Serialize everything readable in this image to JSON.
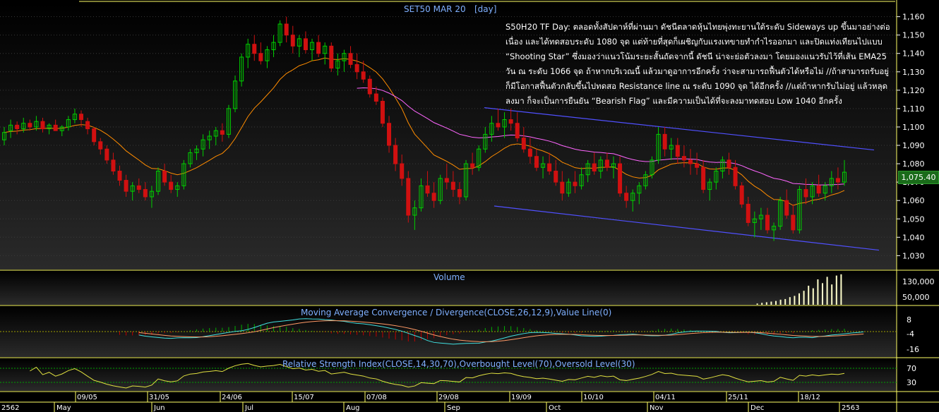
{
  "chart_data": {
    "type": "candlestick",
    "title": "SET50 MAR 20",
    "period": "[day]",
    "y_ticks": [
      1030,
      1040,
      1050,
      1060,
      1070,
      1080,
      1090,
      1100,
      1110,
      1120,
      1130,
      1140,
      1150,
      1160
    ],
    "ylim": [
      1024,
      1166
    ],
    "last_price": "1,075.40",
    "x_labels": [
      "09/05",
      "31/05",
      "24/06",
      "15/07",
      "07/08",
      "29/08",
      "19/09",
      "10/10",
      "04/11",
      "25/11",
      "18/12"
    ],
    "month_labels": [
      "2562",
      "May",
      "Jun",
      "Jul",
      "Aug",
      "Sep",
      "Oct",
      "Nov",
      "Dec",
      "2563"
    ],
    "candles": [
      [
        1093,
        1100,
        1090,
        1097
      ],
      [
        1098,
        1104,
        1094,
        1101
      ],
      [
        1101,
        1103,
        1096,
        1099
      ],
      [
        1099,
        1105,
        1097,
        1102
      ],
      [
        1102,
        1104,
        1098,
        1100
      ],
      [
        1100,
        1106,
        1098,
        1103
      ],
      [
        1103,
        1105,
        1097,
        1099
      ],
      [
        1099,
        1102,
        1096,
        1101
      ],
      [
        1101,
        1104,
        1099,
        1098
      ],
      [
        1098,
        1101,
        1095,
        1100
      ],
      [
        1100,
        1106,
        1098,
        1104
      ],
      [
        1104,
        1110,
        1102,
        1107
      ],
      [
        1107,
        1109,
        1100,
        1104
      ],
      [
        1103,
        1105,
        1096,
        1099
      ],
      [
        1099,
        1100,
        1090,
        1092
      ],
      [
        1092,
        1094,
        1085,
        1088
      ],
      [
        1088,
        1090,
        1080,
        1082
      ],
      [
        1082,
        1086,
        1074,
        1076
      ],
      [
        1076,
        1079,
        1068,
        1071
      ],
      [
        1071,
        1074,
        1062,
        1065
      ],
      [
        1065,
        1070,
        1060,
        1068
      ],
      [
        1068,
        1072,
        1064,
        1066
      ],
      [
        1066,
        1070,
        1060,
        1062
      ],
      [
        1062,
        1068,
        1056,
        1065
      ],
      [
        1065,
        1078,
        1063,
        1076
      ],
      [
        1076,
        1080,
        1068,
        1070
      ],
      [
        1070,
        1074,
        1064,
        1066
      ],
      [
        1066,
        1070,
        1062,
        1068
      ],
      [
        1068,
        1082,
        1066,
        1080
      ],
      [
        1080,
        1088,
        1078,
        1086
      ],
      [
        1086,
        1090,
        1082,
        1088
      ],
      [
        1088,
        1096,
        1084,
        1093
      ],
      [
        1093,
        1098,
        1088,
        1095
      ],
      [
        1095,
        1100,
        1090,
        1098
      ],
      [
        1098,
        1102,
        1092,
        1096
      ],
      [
        1096,
        1112,
        1094,
        1110
      ],
      [
        1110,
        1128,
        1108,
        1125
      ],
      [
        1125,
        1140,
        1122,
        1138
      ],
      [
        1138,
        1148,
        1132,
        1145
      ],
      [
        1145,
        1150,
        1136,
        1140
      ],
      [
        1140,
        1146,
        1134,
        1136
      ],
      [
        1136,
        1144,
        1132,
        1142
      ],
      [
        1142,
        1150,
        1138,
        1146
      ],
      [
        1146,
        1158,
        1144,
        1156
      ],
      [
        1156,
        1160,
        1146,
        1150
      ],
      [
        1150,
        1155,
        1140,
        1144
      ],
      [
        1144,
        1150,
        1138,
        1148
      ],
      [
        1148,
        1152,
        1140,
        1142
      ],
      [
        1142,
        1148,
        1136,
        1146
      ],
      [
        1146,
        1150,
        1138,
        1140
      ],
      [
        1140,
        1146,
        1134,
        1144
      ],
      [
        1144,
        1146,
        1130,
        1132
      ],
      [
        1132,
        1140,
        1128,
        1136
      ],
      [
        1136,
        1142,
        1130,
        1140
      ],
      [
        1140,
        1144,
        1132,
        1134
      ],
      [
        1134,
        1140,
        1126,
        1130
      ],
      [
        1130,
        1136,
        1124,
        1126
      ],
      [
        1126,
        1128,
        1116,
        1118
      ],
      [
        1118,
        1122,
        1112,
        1114
      ],
      [
        1114,
        1116,
        1100,
        1102
      ],
      [
        1102,
        1106,
        1086,
        1090
      ],
      [
        1090,
        1094,
        1076,
        1080
      ],
      [
        1080,
        1085,
        1068,
        1072
      ],
      [
        1072,
        1076,
        1048,
        1052
      ],
      [
        1052,
        1060,
        1044,
        1056
      ],
      [
        1056,
        1072,
        1054,
        1068
      ],
      [
        1068,
        1076,
        1062,
        1064
      ],
      [
        1064,
        1070,
        1056,
        1060
      ],
      [
        1060,
        1074,
        1058,
        1072
      ],
      [
        1072,
        1080,
        1066,
        1070
      ],
      [
        1070,
        1076,
        1062,
        1066
      ],
      [
        1066,
        1070,
        1058,
        1062
      ],
      [
        1062,
        1082,
        1060,
        1080
      ],
      [
        1080,
        1086,
        1074,
        1078
      ],
      [
        1078,
        1090,
        1076,
        1088
      ],
      [
        1088,
        1100,
        1086,
        1096
      ],
      [
        1096,
        1106,
        1092,
        1102
      ],
      [
        1102,
        1110,
        1098,
        1100
      ],
      [
        1100,
        1108,
        1094,
        1104
      ],
      [
        1104,
        1110,
        1098,
        1102
      ],
      [
        1102,
        1108,
        1092,
        1094
      ],
      [
        1094,
        1100,
        1086,
        1088
      ],
      [
        1088,
        1094,
        1080,
        1084
      ],
      [
        1084,
        1088,
        1076,
        1078
      ],
      [
        1078,
        1084,
        1072,
        1080
      ],
      [
        1080,
        1086,
        1074,
        1076
      ],
      [
        1076,
        1082,
        1068,
        1070
      ],
      [
        1070,
        1076,
        1060,
        1064
      ],
      [
        1064,
        1072,
        1062,
        1070
      ],
      [
        1070,
        1076,
        1064,
        1068
      ],
      [
        1068,
        1078,
        1066,
        1074
      ],
      [
        1074,
        1082,
        1070,
        1080
      ],
      [
        1080,
        1086,
        1074,
        1076
      ],
      [
        1076,
        1084,
        1072,
        1082
      ],
      [
        1082,
        1086,
        1076,
        1078
      ],
      [
        1078,
        1084,
        1072,
        1080
      ],
      [
        1080,
        1084,
        1062,
        1064
      ],
      [
        1064,
        1068,
        1056,
        1060
      ],
      [
        1060,
        1066,
        1054,
        1064
      ],
      [
        1064,
        1070,
        1058,
        1068
      ],
      [
        1068,
        1076,
        1066,
        1074
      ],
      [
        1074,
        1084,
        1072,
        1082
      ],
      [
        1082,
        1100,
        1080,
        1096
      ],
      [
        1096,
        1100,
        1084,
        1088
      ],
      [
        1088,
        1094,
        1082,
        1090
      ],
      [
        1090,
        1094,
        1080,
        1084
      ],
      [
        1084,
        1090,
        1078,
        1082
      ],
      [
        1082,
        1088,
        1074,
        1080
      ],
      [
        1080,
        1086,
        1074,
        1078
      ],
      [
        1078,
        1082,
        1064,
        1066
      ],
      [
        1066,
        1072,
        1060,
        1070
      ],
      [
        1070,
        1078,
        1066,
        1076
      ],
      [
        1076,
        1084,
        1072,
        1082
      ],
      [
        1082,
        1086,
        1074,
        1078
      ],
      [
        1078,
        1082,
        1066,
        1068
      ],
      [
        1068,
        1070,
        1056,
        1058
      ],
      [
        1058,
        1062,
        1046,
        1048
      ],
      [
        1048,
        1054,
        1040,
        1050
      ],
      [
        1050,
        1056,
        1044,
        1052
      ],
      [
        1052,
        1056,
        1042,
        1044
      ],
      [
        1044,
        1048,
        1038,
        1046
      ],
      [
        1046,
        1062,
        1044,
        1060
      ],
      [
        1060,
        1066,
        1050,
        1052
      ],
      [
        1052,
        1058,
        1042,
        1044
      ],
      [
        1044,
        1068,
        1042,
        1066
      ],
      [
        1066,
        1072,
        1058,
        1062
      ],
      [
        1062,
        1070,
        1058,
        1068
      ],
      [
        1068,
        1074,
        1062,
        1064
      ],
      [
        1064,
        1070,
        1060,
        1068
      ],
      [
        1068,
        1076,
        1064,
        1072
      ],
      [
        1072,
        1078,
        1066,
        1070
      ],
      [
        1070,
        1082,
        1068,
        1075.4
      ]
    ],
    "volume_ticks": [
      "130,000",
      "50,000"
    ],
    "macd": {
      "title": "Moving Average Convergence / Divergence(CLOSE,26,12,9),Value Line(0)",
      "ticks": [
        "8",
        "-4",
        "-16"
      ]
    },
    "rsi": {
      "title": "Relative Strength Index(CLOSE,14,30,70),Overbought Level(70),Oversold Level(30)",
      "ticks": [
        "70",
        "30"
      ]
    },
    "panels": {
      "volume_title": "Volume"
    }
  },
  "note_lines": [
    "S50H20 TF Day: ตลอดทั้งสัปดาห์ที่ผ่านมา ดัชนีตลาดหุ้นไทยพุ่งทะยานใต้ระดับ Sideways up ขึ้นมาอย่างต่อ",
    "เนื่อง และได้ทดสอบระดับ 1080 จุด แต่ท้ายที่สุดก็เผชิญกับแรงเทขายทำกำไรออกมา และปิดแท่งเทียนไปแบบ",
    "“Shooting Star” ซึ่งมองว่าแนวโน้มระยะสั้นถัดจากนี้ ดัชนี น่าจะย่อตัวลงมา โดยมองแนวรับไว้ที่เส้น EMA25",
    "วัน ณ ระดับ 1066 จุด ถ้าหากบริเวณนี้ แล้วมาดูอาการอีกครั้ง ว่าจะสามารถฟื้นตัวได้หรือไม่ //ถ้าสามารถรับอยู่",
    "ก็มีโอกาสฟื้นตัวกลับขึ้นไปทดสอ Resistance line ณ ระดับ 1090 จุด ได้อีกครั้ง //แต่ถ้าหากรับไม่อยู่ แล้วหลุด",
    "ลงมา ก็จะเป็นการยืนยัน “Bearish Flag” และมีความเป็นได้ที่จะลงมาทดสอบ Low 1040 อีกครั้ง"
  ],
  "colors": {
    "up": "#00d000",
    "down": "#d01010",
    "ema_short": "#ff8c00",
    "ema_long": "#ff66ff",
    "channel": "#5050ff",
    "axis_text": "#ffffff",
    "title": "#7fb0ff",
    "grid": "#3a3a3a",
    "border": "#ffff66"
  }
}
